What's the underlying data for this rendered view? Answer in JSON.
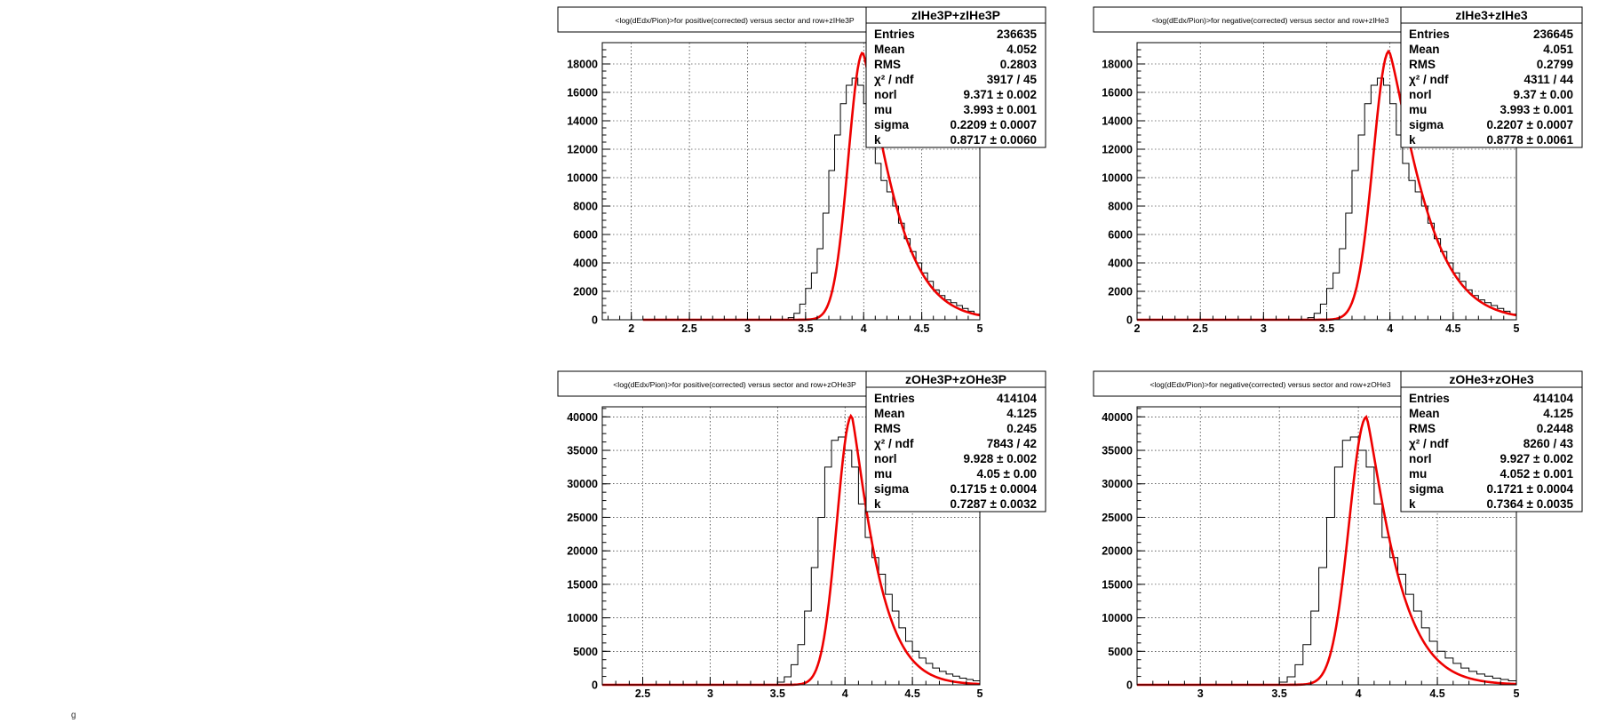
{
  "corner_text": "g",
  "colors": {
    "histogram": "#000000",
    "fit": "#ee0000"
  },
  "chart_data": [
    {
      "type": "histogram-with-fit",
      "title": "<log(dEdx/Pion)>for positive(corrected) versus sector and row+zIHe3P",
      "stats": {
        "name": "zIHe3P+zIHe3P",
        "rows": [
          {
            "label": "Entries",
            "value": "236635"
          },
          {
            "label": "Mean",
            "value": "4.052"
          },
          {
            "label": "RMS",
            "value": "0.2803"
          },
          {
            "label": "χ² / ndf",
            "value": "3917 / 45"
          },
          {
            "label": "norl",
            "value": "9.371 ± 0.002"
          },
          {
            "label": "mu",
            "value": "3.993 ± 0.001"
          },
          {
            "label": "sigma",
            "value": "0.2209 ± 0.0007"
          },
          {
            "label": "k",
            "value": "0.8717 ± 0.0060"
          }
        ]
      },
      "xlim": [
        1.75,
        5.0
      ],
      "ylim": [
        0,
        19500
      ],
      "xticks": [
        2,
        2.5,
        3,
        3.5,
        4,
        4.5,
        5
      ],
      "yticks": [
        0,
        2000,
        4000,
        6000,
        8000,
        10000,
        12000,
        14000,
        16000,
        18000
      ],
      "bins": {
        "x": [
          3.35,
          3.4,
          3.45,
          3.5,
          3.55,
          3.6,
          3.65,
          3.7,
          3.75,
          3.8,
          3.85,
          3.9,
          3.95,
          4.0,
          4.05,
          4.1,
          4.15,
          4.2,
          4.25,
          4.3,
          4.35,
          4.4,
          4.45,
          4.5,
          4.55,
          4.6,
          4.65,
          4.7,
          4.75,
          4.8,
          4.85,
          4.9,
          4.95
        ],
        "y": [
          150,
          450,
          1100,
          2200,
          3300,
          5000,
          7500,
          10500,
          13000,
          15200,
          16500,
          17000,
          16500,
          15200,
          13000,
          11000,
          9800,
          9000,
          8000,
          6800,
          5700,
          4800,
          4000,
          3300,
          2700,
          2100,
          1700,
          1400,
          1200,
          1000,
          800,
          600,
          400
        ]
      },
      "fit": {
        "peak": 18800,
        "mu": 3.993,
        "sigma_left": 0.125,
        "sigma_right": 0.3,
        "tail_power": 1.25,
        "xmin": 2.1,
        "xmax": 5.0
      }
    },
    {
      "type": "histogram-with-fit",
      "title": "<log(dEdx/Pion)>for negative(corrected) versus sector and row+zIHe3",
      "stats": {
        "name": "zIHe3+zIHe3",
        "rows": [
          {
            "label": "Entries",
            "value": "236645"
          },
          {
            "label": "Mean",
            "value": "4.051"
          },
          {
            "label": "RMS",
            "value": "0.2799"
          },
          {
            "label": "χ² / ndf",
            "value": "4311 / 44"
          },
          {
            "label": "norl",
            "value": "9.37 ± 0.00"
          },
          {
            "label": "mu",
            "value": "3.993 ± 0.001"
          },
          {
            "label": "sigma",
            "value": "0.2207 ± 0.0007"
          },
          {
            "label": "k",
            "value": "0.8778 ± 0.0061"
          }
        ]
      },
      "xlim": [
        2.0,
        5.0
      ],
      "ylim": [
        0,
        19500
      ],
      "xticks": [
        2,
        2.5,
        3,
        3.5,
        4,
        4.5,
        5
      ],
      "yticks": [
        0,
        2000,
        4000,
        6000,
        8000,
        10000,
        12000,
        14000,
        16000,
        18000
      ],
      "bins": {
        "x": [
          3.35,
          3.4,
          3.45,
          3.5,
          3.55,
          3.6,
          3.65,
          3.7,
          3.75,
          3.8,
          3.85,
          3.9,
          3.95,
          4.0,
          4.05,
          4.1,
          4.15,
          4.2,
          4.25,
          4.3,
          4.35,
          4.4,
          4.45,
          4.5,
          4.55,
          4.6,
          4.65,
          4.7,
          4.75,
          4.8,
          4.85,
          4.9,
          4.95
        ],
        "y": [
          150,
          450,
          1100,
          2200,
          3300,
          5000,
          7500,
          10500,
          13000,
          15200,
          16500,
          17000,
          16500,
          15200,
          13000,
          11000,
          9800,
          9000,
          8000,
          6800,
          5700,
          4800,
          4000,
          3300,
          2700,
          2100,
          1700,
          1400,
          1200,
          1000,
          800,
          600,
          400
        ]
      },
      "fit": {
        "peak": 18900,
        "mu": 3.993,
        "sigma_left": 0.125,
        "sigma_right": 0.3,
        "tail_power": 1.25,
        "xmin": 2.0,
        "xmax": 5.0
      }
    },
    {
      "type": "histogram-with-fit",
      "title": "<log(dEdx/Pion)>for positive(corrected) versus sector and row+zOHe3P",
      "stats": {
        "name": "zOHe3P+zOHe3P",
        "rows": [
          {
            "label": "Entries",
            "value": "414104"
          },
          {
            "label": "Mean",
            "value": "4.125"
          },
          {
            "label": "RMS",
            "value": "0.245"
          },
          {
            "label": "χ² / ndf",
            "value": "7843 / 42"
          },
          {
            "label": "norl",
            "value": "9.928 ± 0.002"
          },
          {
            "label": "mu",
            "value": "4.05 ± 0.00"
          },
          {
            "label": "sigma",
            "value": "0.1715 ± 0.0004"
          },
          {
            "label": "k",
            "value": "0.7287 ± 0.0032"
          }
        ]
      },
      "xlim": [
        2.2,
        5.0
      ],
      "ylim": [
        0,
        41500
      ],
      "xticks": [
        2.5,
        3,
        3.5,
        4,
        4.5,
        5
      ],
      "yticks": [
        0,
        5000,
        10000,
        15000,
        20000,
        25000,
        30000,
        35000,
        40000
      ],
      "bins": {
        "x": [
          3.5,
          3.55,
          3.6,
          3.65,
          3.7,
          3.75,
          3.8,
          3.85,
          3.9,
          3.95,
          4.0,
          4.05,
          4.1,
          4.15,
          4.2,
          4.25,
          4.3,
          4.35,
          4.4,
          4.45,
          4.5,
          4.55,
          4.6,
          4.65,
          4.7,
          4.75,
          4.8,
          4.85,
          4.9,
          4.95
        ],
        "y": [
          400,
          1200,
          3000,
          6000,
          11000,
          17500,
          25000,
          32500,
          36500,
          37000,
          35000,
          32500,
          27000,
          22000,
          19000,
          16500,
          13500,
          11000,
          8500,
          6500,
          5000,
          4000,
          3200,
          2500,
          2000,
          1600,
          1300,
          1000,
          800,
          600
        ]
      },
      "fit": {
        "peak": 40200,
        "mu": 4.05,
        "sigma_left": 0.11,
        "sigma_right": 0.2,
        "tail_power": 1.2,
        "xmin": 2.2,
        "xmax": 5.0
      }
    },
    {
      "type": "histogram-with-fit",
      "title": "<log(dEdx/Pion)>for negative(corrected) versus sector and row+zOHe3",
      "stats": {
        "name": "zOHe3+zOHe3",
        "rows": [
          {
            "label": "Entries",
            "value": "414104"
          },
          {
            "label": "Mean",
            "value": "4.125"
          },
          {
            "label": "RMS",
            "value": "0.2448"
          },
          {
            "label": "χ² / ndf",
            "value": "8260 / 43"
          },
          {
            "label": "norl",
            "value": "9.927 ± 0.002"
          },
          {
            "label": "mu",
            "value": "4.052 ± 0.001"
          },
          {
            "label": "sigma",
            "value": "0.1721 ± 0.0004"
          },
          {
            "label": "k",
            "value": "0.7364 ± 0.0035"
          }
        ]
      },
      "xlim": [
        2.6,
        5.0
      ],
      "ylim": [
        0,
        41500
      ],
      "xticks": [
        3,
        3.5,
        4,
        4.5,
        5
      ],
      "yticks": [
        0,
        5000,
        10000,
        15000,
        20000,
        25000,
        30000,
        35000,
        40000
      ],
      "bins": {
        "x": [
          3.5,
          3.55,
          3.6,
          3.65,
          3.7,
          3.75,
          3.8,
          3.85,
          3.9,
          3.95,
          4.0,
          4.05,
          4.1,
          4.15,
          4.2,
          4.25,
          4.3,
          4.35,
          4.4,
          4.45,
          4.5,
          4.55,
          4.6,
          4.65,
          4.7,
          4.75,
          4.8,
          4.85,
          4.9,
          4.95
        ],
        "y": [
          400,
          1200,
          3000,
          6000,
          11000,
          17500,
          25000,
          32500,
          36500,
          37000,
          35000,
          32500,
          27000,
          22000,
          19000,
          16500,
          13500,
          11000,
          8500,
          6500,
          5000,
          4000,
          3200,
          2500,
          2000,
          1600,
          1300,
          1000,
          800,
          600
        ]
      },
      "fit": {
        "peak": 40000,
        "mu": 4.052,
        "sigma_left": 0.11,
        "sigma_right": 0.2,
        "tail_power": 1.2,
        "xmin": 2.6,
        "xmax": 5.0
      }
    }
  ]
}
